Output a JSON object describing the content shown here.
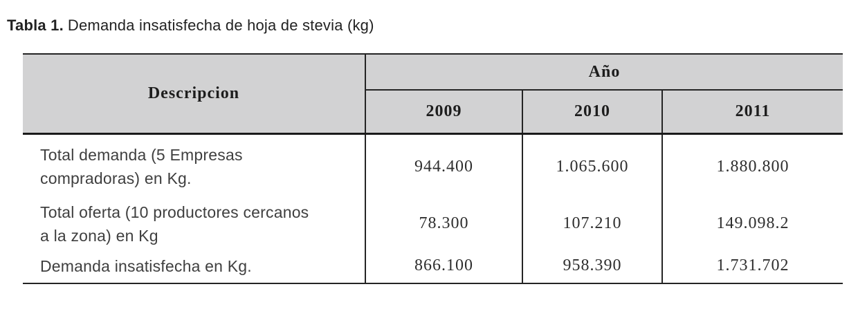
{
  "caption": {
    "label": "Tabla 1.",
    "text": "Demanda insatisfecha de hoja de stevia (kg)"
  },
  "table": {
    "description_header": "Descripcion",
    "year_group_header": "Año",
    "years": [
      "2009",
      "2010",
      "2011"
    ],
    "rows": [
      {
        "description": "Total demanda (5 Empresas compradoras) en Kg.",
        "values": [
          "944.400",
          "1.065.600",
          "1.880.800"
        ]
      },
      {
        "description": "Total oferta (10 productores cercanos a la zona) en Kg",
        "values": [
          "78.300",
          "107.210",
          "149.098.2"
        ]
      },
      {
        "description": "Demanda insatisfecha en Kg.",
        "values": [
          "866.100",
          "958.390",
          "1.731.702"
        ]
      }
    ]
  },
  "colors": {
    "header_bg": "#d2d2d3",
    "border": "#242424",
    "body_text": "#3f3f3f",
    "header_text": "#1d1d1d"
  },
  "chart_data": {
    "type": "table",
    "title": "Tabla 1. Demanda insatisfecha de hoja de stevia (kg)",
    "columns": [
      "Descripcion",
      "2009",
      "2010",
      "2011"
    ],
    "rows": [
      [
        "Total demanda (5 Empresas compradoras) en Kg.",
        "944.400",
        "1.065.600",
        "1.880.800"
      ],
      [
        "Total oferta (10 productores cercanos a la zona) en Kg",
        "78.300",
        "107.210",
        "149.098.2"
      ],
      [
        "Demanda insatisfecha en Kg.",
        "866.100",
        "958.390",
        "1.731.702"
      ]
    ]
  }
}
